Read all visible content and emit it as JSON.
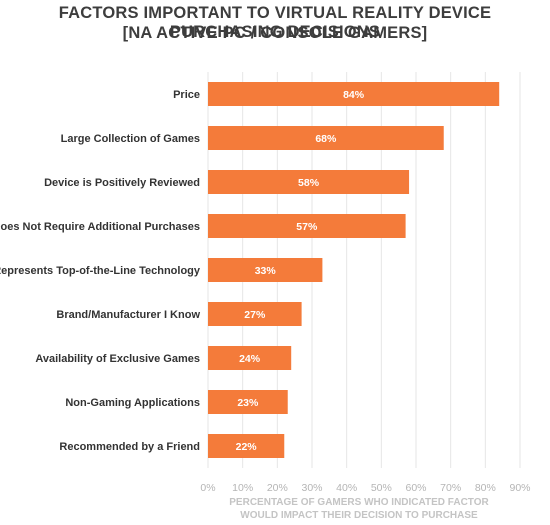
{
  "chart_data": {
    "type": "bar",
    "orientation": "horizontal",
    "title_line1": "FACTORS IMPORTANT TO VIRTUAL REALITY DEVICE PURCHASING DECISIONS",
    "title_line2": "[NA ACTIVE PC / CONSOLE GAMERS]",
    "categories": [
      "Price",
      "Large Collection of Games",
      "Device is Positively Reviewed",
      "Does Not Require Additional Purchases",
      "Represents Top-of-the-Line Technology",
      "Brand/Manufacturer I Know",
      "Availability of Exclusive Games",
      "Non-Gaming Applications",
      "Recommended by a Friend"
    ],
    "values": [
      84,
      68,
      58,
      57,
      33,
      27,
      24,
      23,
      22
    ],
    "data_labels": [
      "84%",
      "68%",
      "58%",
      "57%",
      "33%",
      "27%",
      "24%",
      "23%",
      "22%"
    ],
    "xticks": [
      "0%",
      "10%",
      "20%",
      "30%",
      "40%",
      "50%",
      "60%",
      "70%",
      "80%",
      "90%"
    ],
    "xlim": [
      0,
      90
    ],
    "xlabel_line1": "PERCENTAGE OF GAMERS WHO INDICATED FACTOR",
    "xlabel_line2": "WOULD IMPACT THEIR DECISION TO PURCHASE",
    "grid": true,
    "bar_color": "#F47B3A",
    "grid_color": "#e6e6e6"
  }
}
